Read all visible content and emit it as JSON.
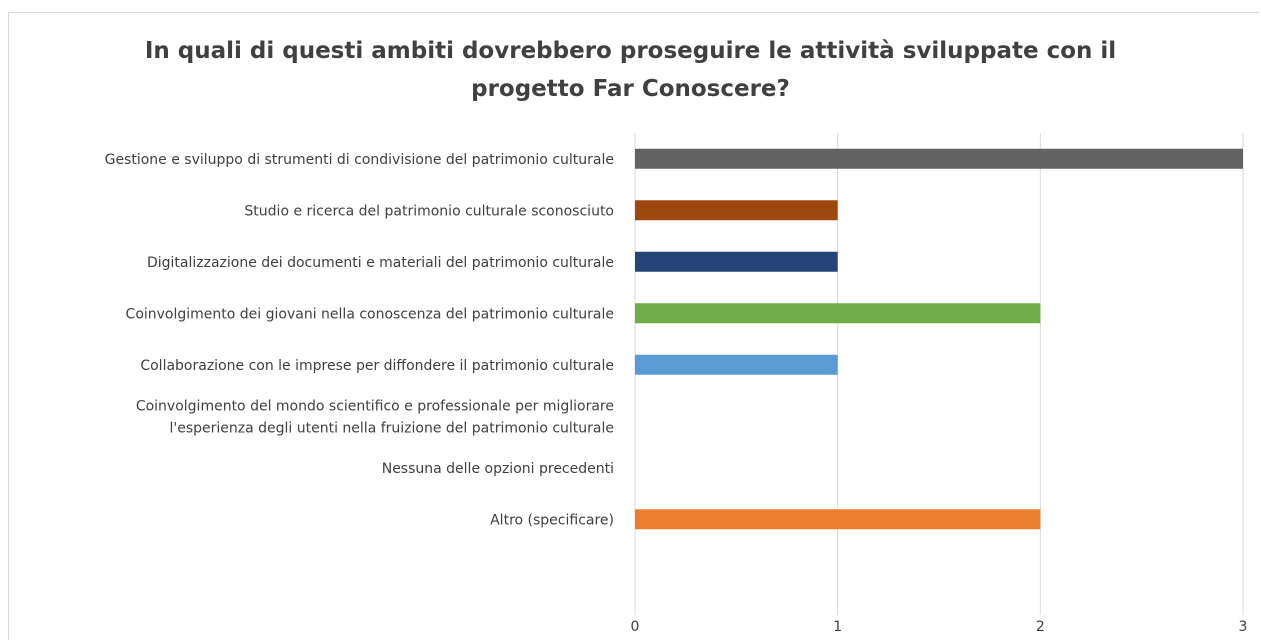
{
  "chart_data": {
    "type": "bar",
    "orientation": "horizontal",
    "title_lines": [
      "In quali di questi ambiti dovrebbero proseguire le attività sviluppate con il",
      "progetto Far Conoscere?"
    ],
    "xlabel": "",
    "ylabel": "",
    "xlim": [
      0,
      3
    ],
    "xticks": [
      "0",
      "1",
      "2",
      "3"
    ],
    "grid": "vertical",
    "legend": "none",
    "categories": [
      [
        "Gestione e sviluppo di strumenti di condivisione del patrimonio culturale"
      ],
      [
        "Studio e ricerca del patrimonio culturale sconosciuto"
      ],
      [
        "Digitalizzazione dei documenti e materiali del patrimonio culturale"
      ],
      [
        "Coinvolgimento dei giovani nella conoscenza del patrimonio culturale"
      ],
      [
        "Collaborazione con le imprese per diffondere il patrimonio culturale"
      ],
      [
        "Coinvolgimento del mondo scientifico e professionale per migliorare",
        "l'esperienza degli utenti nella fruizione del patrimonio culturale"
      ],
      [
        "Nessuna delle opzioni precedenti"
      ],
      [
        "Altro (specificare)"
      ]
    ],
    "values": [
      3,
      1,
      1,
      2,
      1,
      0,
      0,
      2
    ],
    "colors": [
      "#636363",
      "#9e480e",
      "#264478",
      "#70ad47",
      "#5b9bd5",
      "#ffc000",
      "#a5a5a5",
      "#ed7d31"
    ]
  }
}
